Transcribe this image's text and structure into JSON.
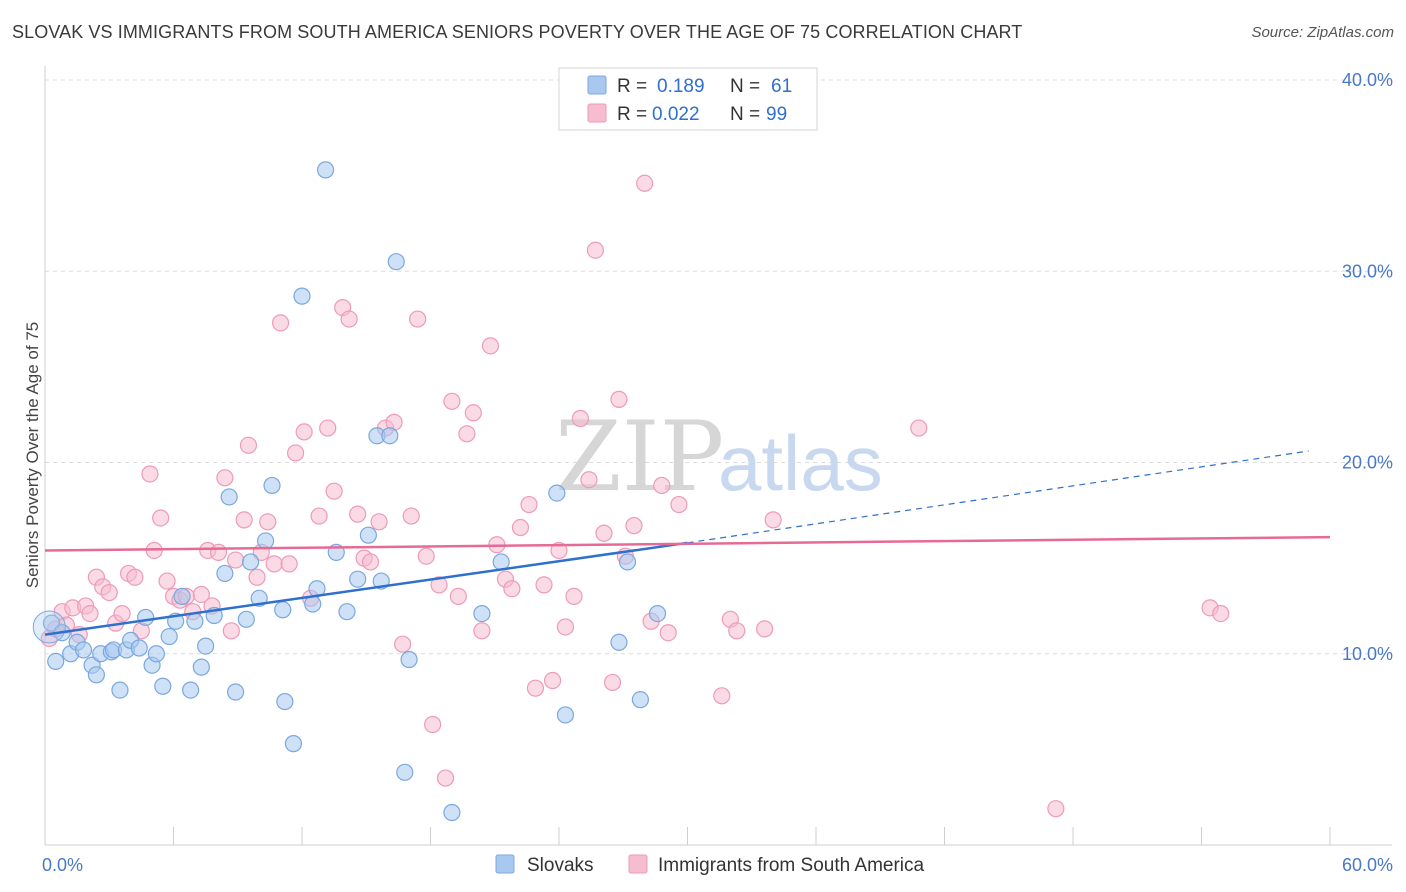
{
  "title": "SLOVAK VS IMMIGRANTS FROM SOUTH AMERICA SENIORS POVERTY OVER THE AGE OF 75 CORRELATION CHART",
  "source": "Source: ZipAtlas.com",
  "watermark": {
    "zip": "ZIP",
    "atlas": "atlas"
  },
  "colors": {
    "slovaks": "#a8c8ef",
    "slovaks_stroke": "#7aa8de",
    "slovaks_line": "#2f6fce",
    "immigrants": "#f6bcd0",
    "immigrants_stroke": "#ee9ab8",
    "immigrants_line": "#e66a96",
    "grid": "#dcdcdc",
    "tick_text": "#4a78c8"
  },
  "legend": {
    "r_label": "R =",
    "n_label": "N =",
    "rows": [
      {
        "r": "0.189",
        "n": "61"
      },
      {
        "r": "0.022",
        "n": "99"
      }
    ]
  },
  "chart_data": {
    "type": "scatter",
    "ylabel": "Seniors Poverty Over the Age of 75",
    "xlim": [
      0,
      60
    ],
    "ylim": [
      0,
      40
    ],
    "x_ticks": [
      {
        "value": 0,
        "label": "0.0%"
      },
      {
        "value": 60,
        "label": "60.0%"
      }
    ],
    "y_ticks": [
      {
        "value": 10,
        "label": "10.0%"
      },
      {
        "value": 20,
        "label": "20.0%"
      },
      {
        "value": 30,
        "label": "30.0%"
      },
      {
        "value": 40,
        "label": "40.0%"
      }
    ],
    "series": [
      {
        "name": "Slovaks",
        "trend": {
          "x0": 0,
          "y0": 11.0,
          "x1": 30,
          "y1": 15.8,
          "dash_to_x": 59,
          "dash_to_y": 20.6
        },
        "points": [
          [
            0.3,
            11.6
          ],
          [
            0.5,
            9.6
          ],
          [
            0.8,
            11.1
          ],
          [
            1.2,
            10.0
          ],
          [
            1.5,
            10.6
          ],
          [
            1.8,
            10.2
          ],
          [
            2.2,
            9.4
          ],
          [
            2.4,
            8.9
          ],
          [
            2.6,
            10.0
          ],
          [
            3.1,
            10.1
          ],
          [
            3.2,
            10.2
          ],
          [
            3.5,
            8.1
          ],
          [
            3.8,
            10.2
          ],
          [
            4.0,
            10.7
          ],
          [
            4.4,
            10.3
          ],
          [
            4.7,
            11.9
          ],
          [
            5.0,
            9.4
          ],
          [
            5.2,
            10.0
          ],
          [
            5.5,
            8.3
          ],
          [
            5.8,
            10.9
          ],
          [
            6.1,
            11.7
          ],
          [
            6.4,
            13.0
          ],
          [
            6.8,
            8.1
          ],
          [
            7.0,
            11.7
          ],
          [
            7.3,
            9.3
          ],
          [
            7.5,
            10.4
          ],
          [
            7.9,
            12.0
          ],
          [
            8.4,
            14.2
          ],
          [
            8.6,
            18.2
          ],
          [
            8.9,
            8.0
          ],
          [
            9.4,
            11.8
          ],
          [
            9.6,
            14.8
          ],
          [
            10.0,
            12.9
          ],
          [
            10.3,
            15.9
          ],
          [
            10.6,
            18.8
          ],
          [
            11.1,
            12.3
          ],
          [
            11.2,
            7.5
          ],
          [
            11.6,
            5.3
          ],
          [
            12.0,
            28.7
          ],
          [
            12.7,
            13.4
          ],
          [
            12.5,
            12.6
          ],
          [
            13.1,
            35.3
          ],
          [
            13.6,
            15.3
          ],
          [
            14.1,
            12.2
          ],
          [
            14.6,
            13.9
          ],
          [
            15.1,
            16.2
          ],
          [
            15.5,
            21.4
          ],
          [
            15.7,
            13.8
          ],
          [
            16.1,
            21.4
          ],
          [
            16.4,
            30.5
          ],
          [
            16.8,
            3.8
          ],
          [
            17.0,
            9.7
          ],
          [
            19.0,
            1.7
          ],
          [
            20.4,
            12.1
          ],
          [
            21.3,
            14.8
          ],
          [
            23.9,
            18.4
          ],
          [
            24.3,
            6.8
          ],
          [
            26.8,
            10.6
          ],
          [
            27.2,
            14.8
          ],
          [
            27.8,
            7.6
          ],
          [
            28.6,
            12.1
          ]
        ]
      },
      {
        "name": "Immigrants from South America",
        "trend": {
          "x0": 0,
          "y0": 15.4,
          "x1": 60,
          "y1": 16.1
        },
        "points": [
          [
            0.2,
            10.8
          ],
          [
            0.5,
            11.3
          ],
          [
            0.8,
            12.2
          ],
          [
            1.0,
            11.5
          ],
          [
            1.3,
            12.4
          ],
          [
            1.6,
            11.0
          ],
          [
            1.9,
            12.5
          ],
          [
            2.1,
            12.1
          ],
          [
            2.4,
            14.0
          ],
          [
            2.7,
            13.5
          ],
          [
            3.0,
            13.2
          ],
          [
            3.3,
            11.6
          ],
          [
            3.6,
            12.1
          ],
          [
            3.9,
            14.2
          ],
          [
            4.2,
            14.0
          ],
          [
            4.5,
            11.2
          ],
          [
            4.9,
            19.4
          ],
          [
            5.1,
            15.4
          ],
          [
            5.4,
            17.1
          ],
          [
            5.7,
            13.8
          ],
          [
            6.0,
            13.0
          ],
          [
            6.3,
            12.8
          ],
          [
            6.6,
            13.0
          ],
          [
            6.9,
            12.2
          ],
          [
            7.3,
            13.1
          ],
          [
            7.6,
            15.4
          ],
          [
            7.8,
            12.5
          ],
          [
            8.1,
            15.3
          ],
          [
            8.4,
            19.2
          ],
          [
            8.7,
            11.2
          ],
          [
            8.9,
            14.9
          ],
          [
            9.3,
            17.0
          ],
          [
            9.5,
            20.9
          ],
          [
            9.9,
            14.0
          ],
          [
            10.1,
            15.3
          ],
          [
            10.4,
            16.9
          ],
          [
            10.7,
            14.7
          ],
          [
            11.0,
            27.3
          ],
          [
            11.4,
            14.7
          ],
          [
            11.7,
            20.5
          ],
          [
            12.1,
            21.6
          ],
          [
            12.4,
            12.9
          ],
          [
            12.8,
            17.2
          ],
          [
            13.2,
            21.8
          ],
          [
            13.5,
            18.5
          ],
          [
            13.9,
            28.1
          ],
          [
            14.2,
            27.5
          ],
          [
            14.6,
            17.3
          ],
          [
            14.9,
            15.0
          ],
          [
            15.2,
            14.8
          ],
          [
            15.6,
            16.9
          ],
          [
            15.9,
            21.8
          ],
          [
            16.3,
            22.1
          ],
          [
            16.7,
            10.5
          ],
          [
            17.1,
            17.2
          ],
          [
            17.4,
            27.5
          ],
          [
            17.8,
            15.1
          ],
          [
            18.1,
            6.3
          ],
          [
            18.4,
            13.6
          ],
          [
            18.7,
            3.5
          ],
          [
            19.0,
            23.2
          ],
          [
            19.3,
            13.0
          ],
          [
            19.7,
            21.5
          ],
          [
            20.0,
            22.6
          ],
          [
            20.4,
            11.2
          ],
          [
            20.8,
            26.1
          ],
          [
            21.1,
            15.7
          ],
          [
            21.5,
            13.9
          ],
          [
            21.8,
            13.4
          ],
          [
            22.2,
            16.6
          ],
          [
            22.6,
            17.8
          ],
          [
            22.9,
            8.2
          ],
          [
            23.3,
            13.6
          ],
          [
            23.7,
            8.6
          ],
          [
            24.0,
            15.4
          ],
          [
            24.3,
            11.4
          ],
          [
            24.7,
            13.0
          ],
          [
            25.0,
            22.3
          ],
          [
            25.4,
            19.1
          ],
          [
            25.7,
            31.1
          ],
          [
            26.1,
            16.3
          ],
          [
            26.5,
            8.5
          ],
          [
            26.8,
            23.3
          ],
          [
            27.1,
            15.1
          ],
          [
            27.5,
            16.7
          ],
          [
            28.0,
            34.6
          ],
          [
            28.3,
            11.7
          ],
          [
            28.8,
            18.8
          ],
          [
            29.1,
            11.1
          ],
          [
            29.6,
            17.8
          ],
          [
            31.6,
            7.8
          ],
          [
            32.0,
            11.8
          ],
          [
            32.3,
            11.2
          ],
          [
            33.6,
            11.3
          ],
          [
            34.0,
            17.0
          ],
          [
            40.8,
            21.8
          ],
          [
            47.2,
            1.9
          ],
          [
            54.4,
            12.4
          ],
          [
            54.9,
            12.1
          ]
        ]
      }
    ]
  },
  "bottom_legend": [
    {
      "label": "Slovaks"
    },
    {
      "label": "Immigrants from South America"
    }
  ]
}
